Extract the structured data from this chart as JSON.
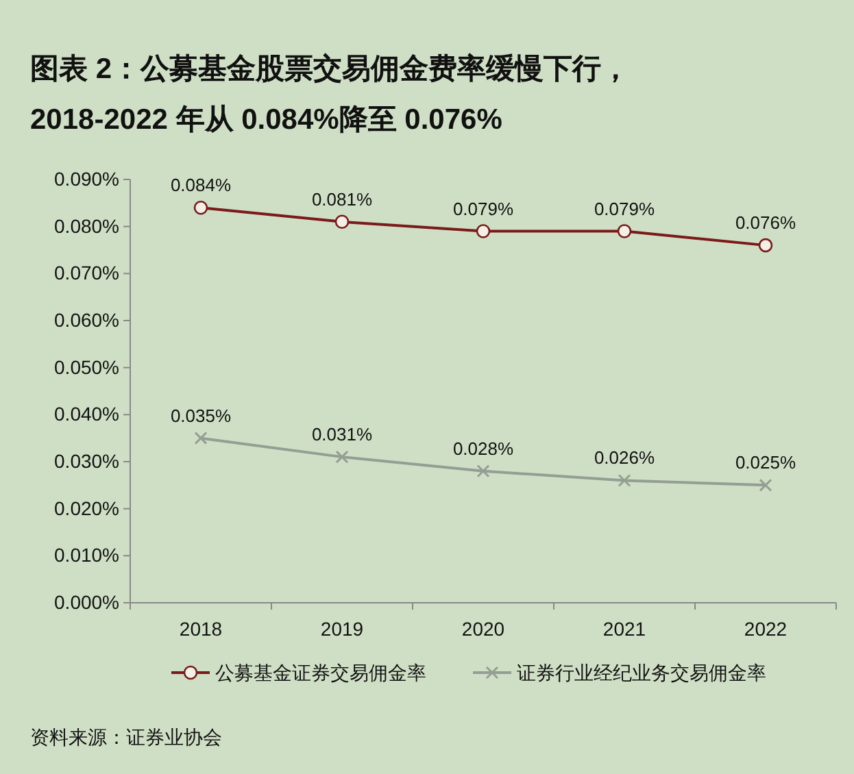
{
  "chart_data": {
    "type": "line",
    "title": "图表 2：公募基金股票交易佣金费率缓慢下行，\n2018-2022 年从 0.084%降至 0.076%",
    "categories": [
      "2018",
      "2019",
      "2020",
      "2021",
      "2022"
    ],
    "series": [
      {
        "name": "公募基金证券交易佣金率",
        "color": "#7a1a1a",
        "marker": "circle",
        "values": [
          0.084,
          0.081,
          0.079,
          0.079,
          0.076
        ],
        "value_labels": [
          "0.084%",
          "0.081%",
          "0.079%",
          "0.079%",
          "0.076%"
        ]
      },
      {
        "name": "证券行业经纪业务交易佣金率",
        "color": "#949e94",
        "marker": "cross",
        "values": [
          0.035,
          0.031,
          0.028,
          0.026,
          0.025
        ],
        "value_labels": [
          "0.035%",
          "0.031%",
          "0.028%",
          "0.026%",
          "0.025%"
        ]
      }
    ],
    "ylim": [
      0,
      0.09
    ],
    "yticks": [
      {
        "value": 0,
        "label": "0.000%"
      },
      {
        "value": 0.01,
        "label": "0.010%"
      },
      {
        "value": 0.02,
        "label": "0.020%"
      },
      {
        "value": 0.03,
        "label": "0.030%"
      },
      {
        "value": 0.04,
        "label": "0.040%"
      },
      {
        "value": 0.05,
        "label": "0.050%"
      },
      {
        "value": 0.06,
        "label": "0.060%"
      },
      {
        "value": 0.07,
        "label": "0.070%"
      },
      {
        "value": 0.08,
        "label": "0.080%"
      },
      {
        "value": 0.09,
        "label": "0.090%"
      }
    ],
    "grid": false,
    "legend": "bottom",
    "line_style": "solid",
    "annotations": [
      "资料来源：证券业协会"
    ]
  }
}
